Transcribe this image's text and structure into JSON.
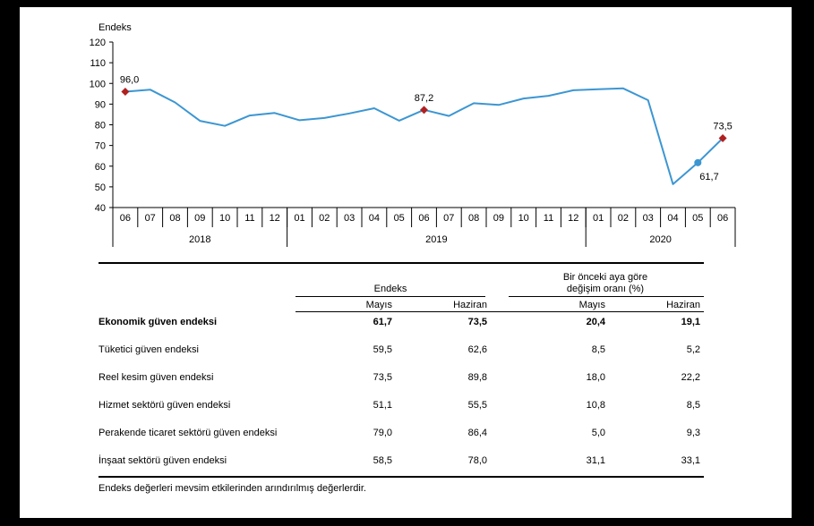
{
  "chart_data": {
    "type": "line",
    "ylabel": "Endeks",
    "ylim": [
      40,
      120
    ],
    "yticks": [
      40,
      50,
      60,
      70,
      80,
      90,
      100,
      110,
      120
    ],
    "x": [
      "2018-06",
      "2018-07",
      "2018-08",
      "2018-09",
      "2018-10",
      "2018-11",
      "2018-12",
      "2019-01",
      "2019-02",
      "2019-03",
      "2019-04",
      "2019-05",
      "2019-06",
      "2019-07",
      "2019-08",
      "2019-09",
      "2019-10",
      "2019-11",
      "2019-12",
      "2020-01",
      "2020-02",
      "2020-03",
      "2020-04",
      "2020-05",
      "2020-06"
    ],
    "month_labels": [
      "06",
      "07",
      "08",
      "09",
      "10",
      "11",
      "12",
      "01",
      "02",
      "03",
      "04",
      "05",
      "06",
      "07",
      "08",
      "09",
      "10",
      "11",
      "12",
      "01",
      "02",
      "03",
      "04",
      "05",
      "06"
    ],
    "year_groups": [
      {
        "label": "2018",
        "count": 7
      },
      {
        "label": "2019",
        "count": 12
      },
      {
        "label": "2020",
        "count": 6
      }
    ],
    "series": [
      {
        "values": [
          96.0,
          97.0,
          90.8,
          81.9,
          79.5,
          84.5,
          85.7,
          82.2,
          83.3,
          85.5,
          88.0,
          82.0,
          87.2,
          84.3,
          90.4,
          89.6,
          92.7,
          94.0,
          96.7,
          97.2,
          97.6,
          91.9,
          51.3,
          61.7,
          73.5
        ],
        "color": "#3c96d2"
      }
    ],
    "highlight_points": [
      {
        "index": 0,
        "label": "96,0",
        "color": "#b02020",
        "shape": "diamond"
      },
      {
        "index": 12,
        "label": "87,2",
        "color": "#b02020",
        "shape": "diamond"
      },
      {
        "index": 23,
        "label": "61,7",
        "color": "#3c96d2",
        "shape": "circle"
      },
      {
        "index": 24,
        "label": "73,5",
        "color": "#b02020",
        "shape": "diamond"
      }
    ],
    "grid": false
  },
  "table": {
    "group1_title": "Endeks",
    "group2_title_line1": "Bir önceki aya göre",
    "group2_title_line2": "değişim oranı (%)",
    "sub_headers": [
      "Mayıs",
      "Haziran",
      "Mayıs",
      "Haziran"
    ],
    "rows": [
      {
        "label": "Ekonomik güven endeksi",
        "values": [
          "61,7",
          "73,5",
          "20,4",
          "19,1"
        ],
        "bold": true
      },
      {
        "label": "Tüketici güven endeksi",
        "values": [
          "59,5",
          "62,6",
          "8,5",
          "5,2"
        ]
      },
      {
        "label": "Reel kesim güven endeksi",
        "values": [
          "73,5",
          "89,8",
          "18,0",
          "22,2"
        ]
      },
      {
        "label": "Hizmet sektörü güven endeksi",
        "values": [
          "51,1",
          "55,5",
          "10,8",
          "8,5"
        ]
      },
      {
        "label": "Perakende ticaret sektörü güven endeksi",
        "values": [
          "79,0",
          "86,4",
          "5,0",
          "9,3"
        ]
      },
      {
        "label": "İnşaat sektörü güven endeksi",
        "values": [
          "58,5",
          "78,0",
          "31,1",
          "33,1"
        ]
      }
    ],
    "footnote": "Endeks değerleri mevsim etkilerinden arındırılmış değerlerdir."
  }
}
